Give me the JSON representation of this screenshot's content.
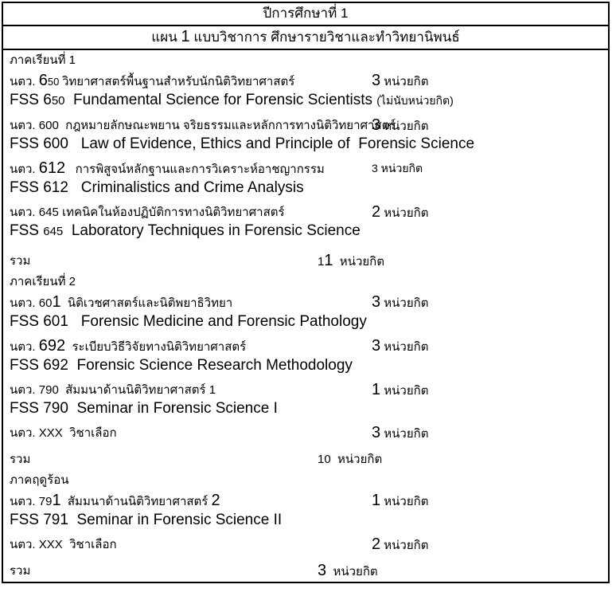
{
  "colors": {
    "background": "#ffffff",
    "text": "#000000",
    "border": "#000000"
  },
  "document": {
    "year_header": {
      "text": "ปีการศึกษาที่ 1"
    },
    "plan_header": {
      "text": "แผน 1 แบบวิชาการ ศึกษารายวิชาและทำวิทยานิพนธ์",
      "fmt": [
        [
          "แผน ",
          "h"
        ],
        [
          "1",
          "bigh"
        ],
        [
          " แบบวิชาการ ศึกษารายวิชาและทำวิทยานิพนธ์",
          "h"
        ]
      ]
    },
    "total_label": "รวม",
    "sections": [
      {
        "label": "ภาคเรียนที่ 1",
        "rows": [
          {
            "text_th": "นตว. 650 วิทยาศาสตร์พื้นฐานสำหรับนักนิติวิทยาศาสตร์",
            "credit": "3 หน่วยกิต",
            "text_en": "FSS 650  Fundamental Science for Forensic Scientists (ไม่นับหน่วยกิต)",
            "fmt_th": [
              [
                "นตว. ",
                "th"
              ],
              [
                "6",
                "big"
              ],
              [
                "50 ",
                "sm"
              ],
              [
                "วิทยาศาสตร์พื้นฐานสำหรับนักนิติวิทยาศาสตร์",
                "th"
              ]
            ],
            "fmt_credit": [
              [
                "3",
                "big"
              ],
              [
                " หน่วยกิต",
                "th"
              ]
            ],
            "fmt_en": [
              [
                "FSS 6",
                "en"
              ],
              [
                "50",
                "ensm"
              ],
              [
                "  Fundamental Science for Forensic Scientists ",
                "en"
              ],
              [
                "(ไม่นับหน่วยกิต)",
                "note"
              ]
            ]
          },
          {
            "text_th": "นตว. 600  กฎหมายลักษณะพยาน จริยธรรมและหลักการทางนิติวิทยาศาสตร์",
            "credit": "3 หน่วยกิต",
            "text_en": "FSS 600   Law of Evidence, Ethics and Principle of  Forensic Science",
            "fmt_th": [
              [
                "นตว. 600  กฎหมายลักษณะพยาน จริยธรรมและหลักการทางนิติวิทยาศาสตร์",
                "th"
              ]
            ],
            "fmt_credit": [
              [
                "3",
                "big"
              ],
              [
                " หน่วยกิต",
                "th"
              ]
            ],
            "fmt_en": [
              [
                "FSS 600   Law of Evidence, Ethics and Principle of  Forensic Science",
                "en"
              ]
            ]
          },
          {
            "text_th": "นตว. 612   การพิสูจน์หลักฐานและการวิเคราะห์อาชญากรรม",
            "credit": "3 หน่วยกิต",
            "text_en": "FSS 612   Criminalistics and Crime Analysis",
            "fmt_th": [
              [
                "นตว. ",
                "th"
              ],
              [
                "612",
                "big"
              ],
              [
                "   การพิสูจน์หลักฐานและการวิเคราะห์อาชญากรรม",
                "th"
              ]
            ],
            "fmt_credit": [
              [
                "3 หน่วยกิต",
                "thsm"
              ]
            ],
            "fmt_en": [
              [
                "FSS 612   Criminalistics and Crime Analysis",
                "en"
              ]
            ]
          },
          {
            "text_th": "นตว. 645 เทคนิคในห้องปฏิบัติการทางนิติวิทยาศาสตร์",
            "credit": "2 หน่วยกิต",
            "text_en": "FSS 645  Laboratory Techniques in Forensic Science",
            "fmt_th": [
              [
                "นตว. 645 เทคนิคในห้องปฏิบัติการทางนิติวิทยาศาสตร์",
                "th"
              ]
            ],
            "fmt_credit": [
              [
                "2",
                "big"
              ],
              [
                " หน่วยกิต",
                "th"
              ]
            ],
            "fmt_en": [
              [
                "FSS ",
                "en"
              ],
              [
                "645",
                "ensm"
              ],
              [
                "  Laboratory Techniques in Forensic Science",
                "en"
              ]
            ]
          }
        ],
        "total": "11 หน่วยกิต",
        "fmt_total": [
          [
            "1",
            "th"
          ],
          [
            "1",
            "big"
          ],
          [
            "  หน่วยกิต",
            "th"
          ]
        ]
      },
      {
        "label": "ภาคเรียนที่ 2",
        "rows": [
          {
            "text_th": "นตว. 601  นิติเวชศาสตร์และนิติพยาธิวิทยา",
            "credit": "3 หน่วยกิต",
            "text_en": "FSS 601   Forensic Medicine and Forensic Pathology",
            "fmt_th": [
              [
                "นตว. 60",
                "th"
              ],
              [
                "1",
                "big"
              ],
              [
                "  นิติเวชศาสตร์และนิติพยาธิวิทยา",
                "th"
              ]
            ],
            "fmt_credit": [
              [
                "3",
                "big"
              ],
              [
                " หน่วยกิต",
                "th"
              ]
            ],
            "fmt_en": [
              [
                "FSS 601   Forensic Medicine and Forensic Pathology",
                "en"
              ]
            ]
          },
          {
            "text_th": "นตว. 692  ระเบียบวิธีวิจัยทางนิติวิทยาศาสตร์",
            "credit": "3 หน่วยกิต",
            "text_en": "FSS 692  Forensic Science Research Methodology",
            "fmt_th": [
              [
                "นตว. ",
                "th"
              ],
              [
                "692",
                "big"
              ],
              [
                "  ระเบียบวิธีวิจัยทางนิติวิทยาศาสตร์",
                "th"
              ]
            ],
            "fmt_credit": [
              [
                "3",
                "big"
              ],
              [
                " หน่วยกิต",
                "th"
              ]
            ],
            "fmt_en": [
              [
                "FSS 692  Forensic Science Research Methodology",
                "en"
              ]
            ]
          },
          {
            "text_th": "นตว. 790  สัมมนาด้านนิติวิทยาศาสตร์ 1",
            "credit": "1 หน่วยกิต",
            "text_en": "FSS 790  Seminar in Forensic Science I",
            "fmt_th": [
              [
                "นตว. 790  สัมมนาด้านนิติวิทยาศาสตร์ 1",
                "th"
              ]
            ],
            "fmt_credit": [
              [
                "1",
                "big"
              ],
              [
                " หน่วยกิต",
                "th"
              ]
            ],
            "fmt_en": [
              [
                "FSS 790  Seminar in Forensic Science I",
                "en"
              ]
            ]
          },
          {
            "text_th": "นตว. XXX  วิชาเลือก",
            "credit": "3 หน่วยกิต",
            "text_en": "",
            "fmt_th": [
              [
                "นตว. XXX  วิชาเลือก",
                "th"
              ]
            ],
            "fmt_credit": [
              [
                "3",
                "big"
              ],
              [
                " หน่วยกิต",
                "th"
              ]
            ],
            "fmt_en": null
          }
        ],
        "total": "10 หน่วยกิต",
        "fmt_total": [
          [
            "10  หน่วยกิต",
            "th"
          ]
        ]
      },
      {
        "label": "ภาคฤดูร้อน",
        "rows": [
          {
            "text_th": "นตว. 791  สัมมนาด้านนิติวิทยาศาสตร์ 2",
            "credit": "1 หน่วยกิต",
            "text_en": "FSS 791  Seminar in Forensic Science II",
            "fmt_th": [
              [
                "นตว. 79",
                "th"
              ],
              [
                "1",
                "big"
              ],
              [
                "  สัมมนาด้านนิติวิทยาศาสตร์ ",
                "th"
              ],
              [
                "2",
                "big"
              ]
            ],
            "fmt_credit": [
              [
                "1",
                "big"
              ],
              [
                " หน่วยกิต",
                "th"
              ]
            ],
            "fmt_en": [
              [
                "FSS 791  Seminar in Forensic Science II",
                "en"
              ]
            ]
          },
          {
            "text_th": "นตว. XXX  วิชาเลือก",
            "credit": "2 หน่วยกิต",
            "text_en": "",
            "fmt_th": [
              [
                "นตว. XXX  วิชาเลือก",
                "th"
              ]
            ],
            "fmt_credit": [
              [
                "2",
                "big"
              ],
              [
                " หน่วยกิต",
                "th"
              ]
            ],
            "fmt_en": null
          }
        ],
        "total": "3 หน่วยกิต",
        "fmt_total": [
          [
            "3",
            "big"
          ],
          [
            "  หน่วยกิต",
            "th"
          ]
        ]
      }
    ]
  }
}
